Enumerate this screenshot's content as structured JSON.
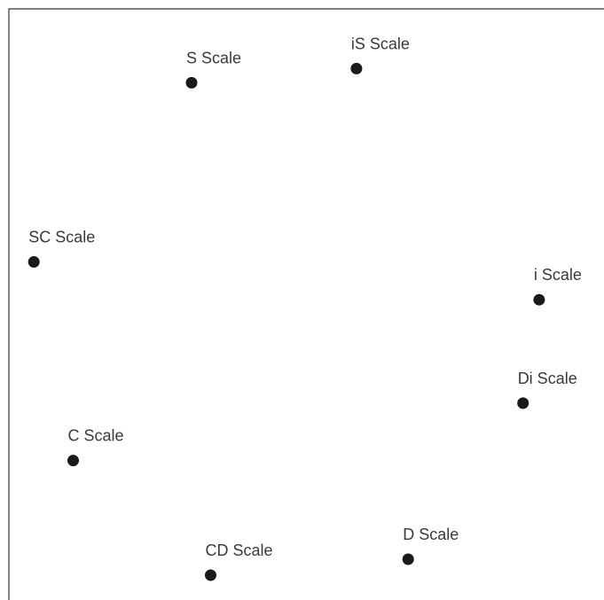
{
  "chart_data": {
    "type": "scatter",
    "title": "",
    "xlabel": "",
    "ylabel": "",
    "xlim": [
      0,
      100
    ],
    "ylim": [
      0,
      100
    ],
    "grid": false,
    "axes_visible": false,
    "marker_color": "#1a1a1a",
    "points": [
      {
        "label": "S Scale",
        "x": 30.7,
        "y": 87.5
      },
      {
        "label": "iS Scale",
        "x": 58.4,
        "y": 89.9
      },
      {
        "label": "SC Scale",
        "x": 4.2,
        "y": 57.2
      },
      {
        "label": "i Scale",
        "x": 89.1,
        "y": 50.8
      },
      {
        "label": "Di Scale",
        "x": 86.4,
        "y": 33.3
      },
      {
        "label": "C Scale",
        "x": 10.8,
        "y": 23.6
      },
      {
        "label": "D Scale",
        "x": 67.1,
        "y": 6.9
      },
      {
        "label": "CD Scale",
        "x": 33.9,
        "y": 4.2
      }
    ]
  }
}
